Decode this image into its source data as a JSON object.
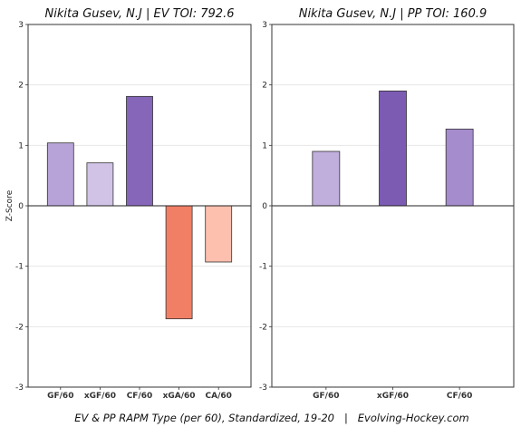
{
  "caption": "EV & PP RAPM Type (per 60), Standardized, 19-20   |   Evolving-Hockey.com",
  "chart_data": [
    {
      "type": "bar",
      "title": "Nikita Gusev, N.J  |  EV TOI: 792.6",
      "ylabel": "Z-Score",
      "ylim": [
        -3,
        3
      ],
      "yticks": [
        "3",
        "2",
        "1",
        "0",
        "-1",
        "-2",
        "-3"
      ],
      "grid": "horizontal",
      "categories": [
        "GF/60",
        "xGF/60",
        "CF/60",
        "xGA/60",
        "CA/60"
      ],
      "values": [
        1.04,
        0.71,
        1.81,
        -1.87,
        -0.93
      ],
      "colors": [
        "#b7a3d8",
        "#d0c3e6",
        "#8566b8",
        "#f07f65",
        "#fdbfae"
      ]
    },
    {
      "type": "bar",
      "title": "Nikita Gusev, N.J  |  PP TOI: 160.9",
      "ylabel": "",
      "ylim": [
        -3,
        3
      ],
      "yticks": [
        "3",
        "2",
        "1",
        "0",
        "-1",
        "-2",
        "-3"
      ],
      "grid": "horizontal",
      "categories": [
        "GF/60",
        "xGF/60",
        "CF/60"
      ],
      "values": [
        0.9,
        1.9,
        1.27
      ],
      "colors": [
        "#c0aedd",
        "#7c5bb3",
        "#a58ccc"
      ]
    }
  ]
}
